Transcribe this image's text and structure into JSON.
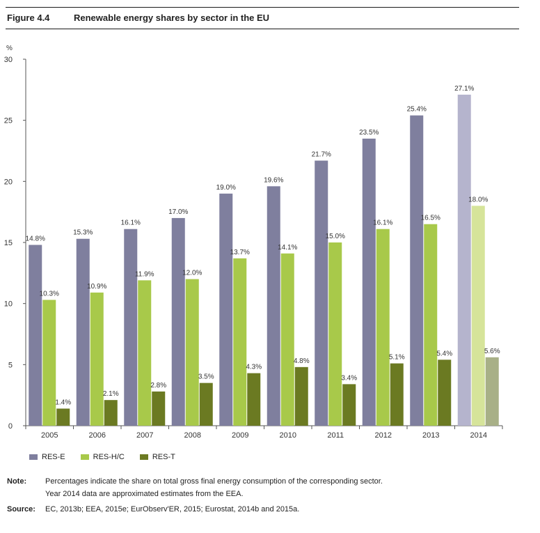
{
  "figure": {
    "label": "Figure 4.4",
    "title": "Renewable energy shares by sector in the EU"
  },
  "chart_data": {
    "type": "bar",
    "title": "Renewable energy shares by sector in the EU",
    "ylabel": "%",
    "xlabel": "",
    "ylim": [
      0,
      30
    ],
    "yticks": [
      0,
      5,
      10,
      15,
      20,
      25,
      30
    ],
    "categories": [
      "2005",
      "2006",
      "2007",
      "2008",
      "2009",
      "2010",
      "2011",
      "2012",
      "2013",
      "2014"
    ],
    "series": [
      {
        "name": "RES-E",
        "color": "#7f7f9e",
        "values": [
          14.8,
          15.3,
          16.1,
          17.0,
          19.0,
          19.6,
          21.7,
          23.5,
          25.4,
          27.1
        ],
        "labels": [
          "14.8%",
          "15.3%",
          "16.1%",
          "17.0%",
          "19.0%",
          "19.6%",
          "21.7%",
          "23.5%",
          "25.4%",
          "27.1%"
        ]
      },
      {
        "name": "RES-H/C",
        "color": "#a8c94a",
        "values": [
          10.3,
          10.9,
          11.9,
          12.0,
          13.7,
          14.1,
          15.0,
          16.1,
          16.5,
          18.0
        ],
        "labels": [
          "10.3%",
          "10.9%",
          "11.9%",
          "12.0%",
          "13.7%",
          "14.1%",
          "15.0%",
          "16.1%",
          "16.5%",
          "18.0%"
        ]
      },
      {
        "name": "RES-T",
        "color": "#6b7a22",
        "values": [
          1.4,
          2.1,
          2.8,
          3.5,
          4.3,
          4.8,
          3.4,
          5.1,
          5.4,
          5.6
        ],
        "labels": [
          "1.4%",
          "2.1%",
          "2.8%",
          "3.5%",
          "4.3%",
          "4.8%",
          "3.4%",
          "5.1%",
          "5.4%",
          "5.6%"
        ]
      }
    ],
    "estimate_category": "2014",
    "estimate_colors": [
      "#b5b4cd",
      "#d6e49a",
      "#a8b087"
    ],
    "grid": false,
    "legend_position": "bottom-left"
  },
  "notes": {
    "note_label": "Note:",
    "note_line1": "Percentages indicate the share on total gross final energy consumption of the corresponding sector.",
    "note_line2": "Year 2014 data are approximated estimates from the EEA.",
    "source_label": "Source:",
    "source_text": "EC, 2013b; EEA, 2015e; EurObserv'ER, 2015; Eurostat, 2014b and 2015a."
  }
}
